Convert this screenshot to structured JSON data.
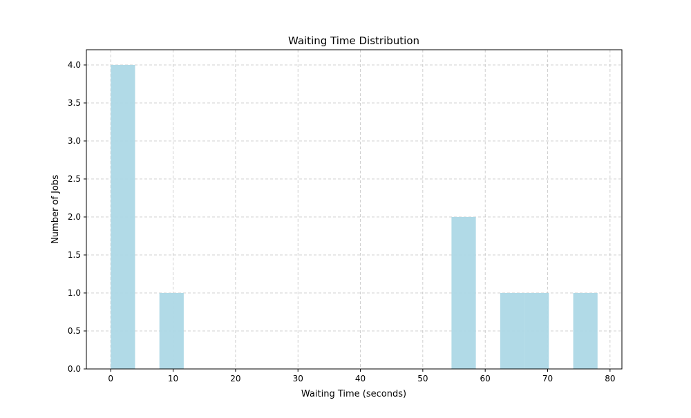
{
  "chart_data": {
    "type": "bar",
    "title": "Waiting Time Distribution",
    "xlabel": "Waiting Time (seconds)",
    "ylabel": "Number of Jobs",
    "xlim": [
      -3.9,
      81.9
    ],
    "ylim": [
      0,
      4.2
    ],
    "xticks": [
      0,
      10,
      20,
      30,
      40,
      50,
      60,
      70,
      80
    ],
    "xtick_labels": [
      "0",
      "10",
      "20",
      "30",
      "40",
      "50",
      "60",
      "70",
      "80"
    ],
    "yticks": [
      0,
      0.5,
      1,
      1.5,
      2,
      2.5,
      3,
      3.5,
      4
    ],
    "ytick_labels": [
      "0.0",
      "0.5",
      "1.0",
      "1.5",
      "2.0",
      "2.5",
      "3.0",
      "3.5",
      "4.0"
    ],
    "grid": true,
    "bar_color": "#add8e6",
    "bins": [
      {
        "x0": 0,
        "x1": 3.9,
        "count": 4
      },
      {
        "x0": 7.8,
        "x1": 11.7,
        "count": 1
      },
      {
        "x0": 54.6,
        "x1": 58.5,
        "count": 2
      },
      {
        "x0": 62.4,
        "x1": 66.3,
        "count": 1
      },
      {
        "x0": 66.3,
        "x1": 70.2,
        "count": 1
      },
      {
        "x0": 74.1,
        "x1": 78.0,
        "count": 1
      }
    ]
  }
}
